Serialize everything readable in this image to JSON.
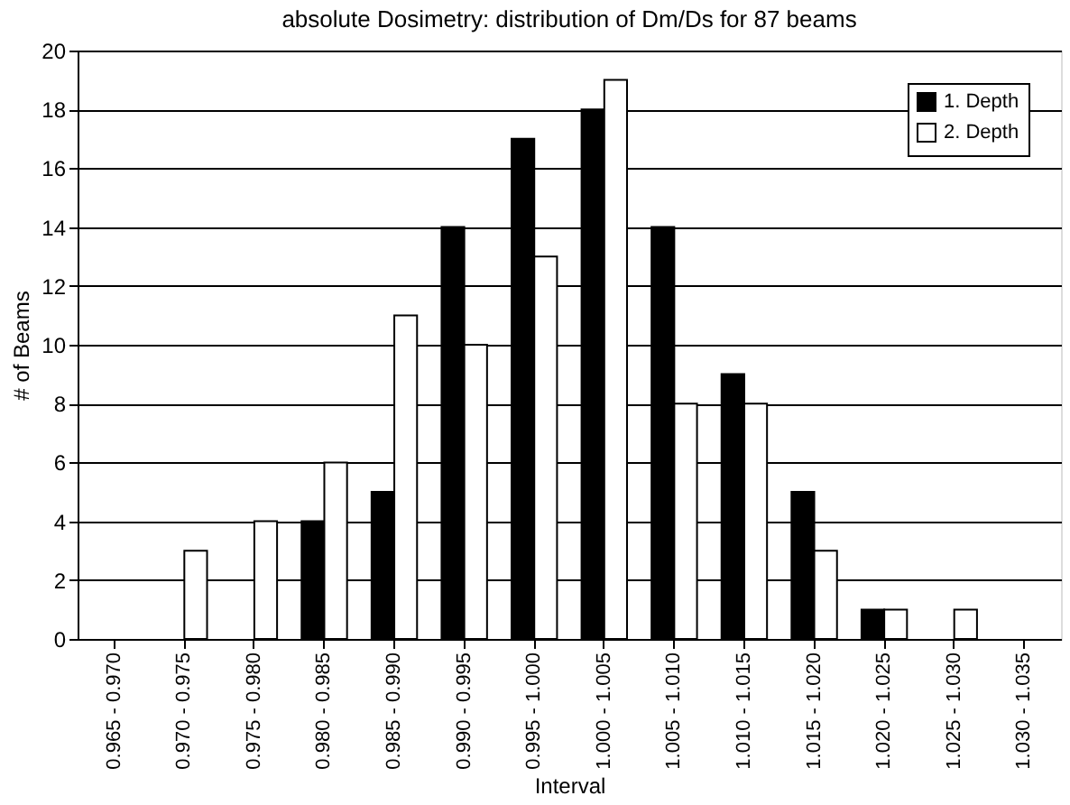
{
  "chart_data": {
    "type": "bar",
    "title": "absolute Dosimetry: distribution of Dm/Ds for 87 beams",
    "xlabel": "Interval",
    "ylabel": "# of Beams",
    "categories": [
      "0.965 - 0.970",
      "0.970 - 0.975",
      "0.975 - 0.980",
      "0.980 - 0.985",
      "0.985 - 0.990",
      "0.990 - 0.995",
      "0.995 - 1.000",
      "1.000 - 1.005",
      "1.005 - 1.010",
      "1.010 - 1.015",
      "1.015 - 1.020",
      "1.020 - 1.025",
      "1.025 - 1.030",
      "1.030 - 1.035"
    ],
    "series": [
      {
        "name": "1. Depth",
        "color": "#000000",
        "values": [
          0,
          0,
          0,
          4,
          5,
          14,
          17,
          18,
          14,
          9,
          5,
          1,
          0,
          0
        ]
      },
      {
        "name": "2. Depth",
        "color": "#ffffff",
        "values": [
          0,
          3,
          4,
          6,
          11,
          10,
          13,
          19,
          8,
          8,
          3,
          1,
          1,
          0
        ]
      }
    ],
    "ylim": [
      0,
      20
    ],
    "yticks": [
      0,
      2,
      4,
      6,
      8,
      10,
      12,
      14,
      16,
      18,
      20
    ],
    "grid": "y",
    "legend": "top right"
  }
}
